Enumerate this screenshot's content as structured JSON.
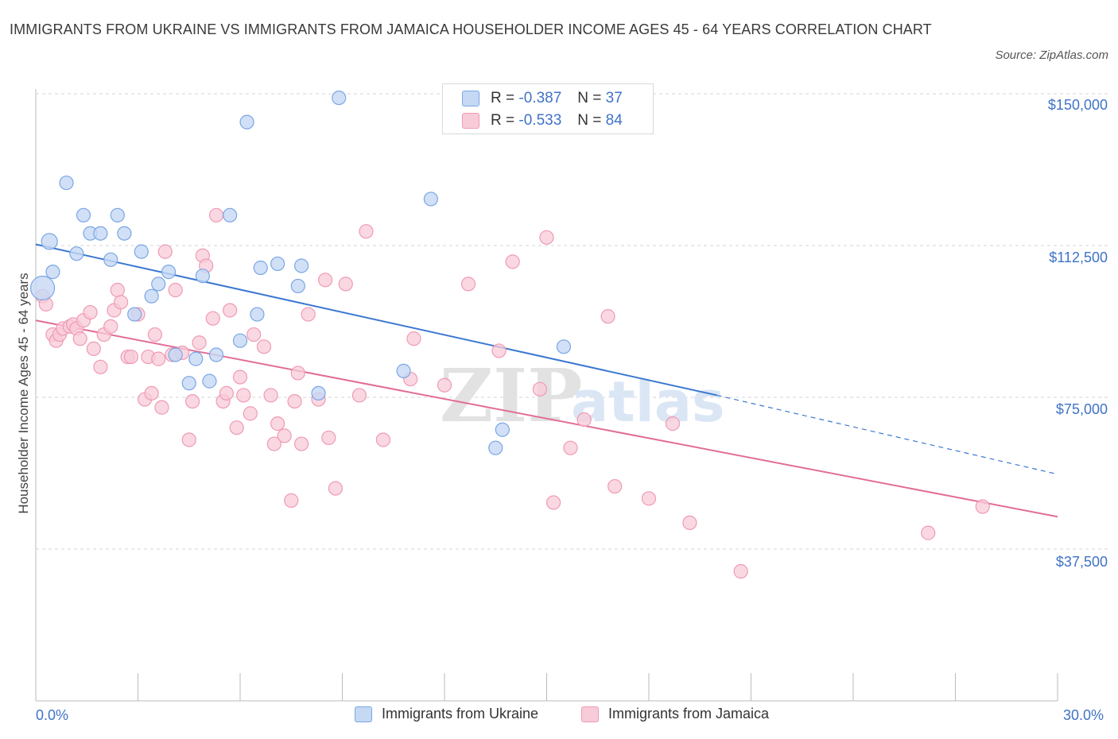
{
  "title": "IMMIGRANTS FROM UKRAINE VS IMMIGRANTS FROM JAMAICA HOUSEHOLDER INCOME AGES 45 - 64 YEARS CORRELATION CHART",
  "source": "Source: ZipAtlas.com",
  "watermark": {
    "zip": "ZIP",
    "atlas": "atlas"
  },
  "colors": {
    "ukraine_fill": "#c5d8f4",
    "ukraine_stroke": "#7aa6e6",
    "ukraine_line": "#3c78d0",
    "jamaica_fill": "#f8cbd8",
    "jamaica_stroke": "#ef9ab4",
    "jamaica_line": "#e26d97",
    "axis_text": "#3f73c6",
    "grid": "#d6d6d6"
  },
  "legend": {
    "r_label": "R =",
    "n_label": "N =",
    "ukraine": {
      "r": "-0.387",
      "n": "37"
    },
    "jamaica": {
      "r": "-0.533",
      "n": "84"
    }
  },
  "chart_data": {
    "type": "scatter",
    "title": "IMMIGRANTS FROM UKRAINE VS IMMIGRANTS FROM JAMAICA HOUSEHOLDER INCOME AGES 45 - 64 YEARS CORRELATION CHART",
    "xlabel": "",
    "ylabel": "Householder Income Ages 45 - 64 years",
    "xlim": [
      0,
      30
    ],
    "ylim": [
      0,
      150000
    ],
    "x_tick_labels": [
      "0.0%",
      "30.0%"
    ],
    "y_ticks": [
      37500,
      75000,
      112500,
      150000
    ],
    "y_tick_labels": [
      "$37,500",
      "$75,000",
      "$112,500",
      "$150,000"
    ],
    "grid": true,
    "series": [
      {
        "name": "Immigrants from Ukraine",
        "points": [
          [
            0.2,
            102000
          ],
          [
            0.4,
            113500
          ],
          [
            0.5,
            106000
          ],
          [
            0.9,
            128000
          ],
          [
            1.2,
            110500
          ],
          [
            1.4,
            120000
          ],
          [
            1.6,
            115500
          ],
          [
            1.9,
            115500
          ],
          [
            2.2,
            109000
          ],
          [
            2.4,
            120000
          ],
          [
            2.6,
            115500
          ],
          [
            2.9,
            95500
          ],
          [
            3.1,
            111000
          ],
          [
            3.4,
            100000
          ],
          [
            3.6,
            103000
          ],
          [
            3.9,
            106000
          ],
          [
            4.1,
            85500
          ],
          [
            4.5,
            78500
          ],
          [
            4.7,
            84500
          ],
          [
            4.9,
            105000
          ],
          [
            5.1,
            79000
          ],
          [
            5.3,
            85500
          ],
          [
            5.7,
            120000
          ],
          [
            6.0,
            89000
          ],
          [
            6.2,
            143000
          ],
          [
            6.5,
            95500
          ],
          [
            6.6,
            107000
          ],
          [
            7.1,
            108000
          ],
          [
            7.7,
            102500
          ],
          [
            7.8,
            107500
          ],
          [
            8.3,
            76000
          ],
          [
            8.9,
            149000
          ],
          [
            10.8,
            81500
          ],
          [
            11.6,
            124000
          ],
          [
            13.5,
            62500
          ],
          [
            13.7,
            67000
          ],
          [
            15.5,
            87500
          ]
        ],
        "trend": {
          "x": [
            0,
            20.0
          ],
          "y": [
            112800,
            75500
          ],
          "dashed_to": [
            30,
            56000
          ]
        }
      },
      {
        "name": "Immigrants from Jamaica",
        "points": [
          [
            0.2,
            100000
          ],
          [
            0.3,
            98000
          ],
          [
            0.5,
            90500
          ],
          [
            0.6,
            89000
          ],
          [
            0.7,
            90500
          ],
          [
            0.8,
            92000
          ],
          [
            1.0,
            92500
          ],
          [
            1.1,
            93000
          ],
          [
            1.2,
            92000
          ],
          [
            1.3,
            89500
          ],
          [
            1.4,
            94000
          ],
          [
            1.6,
            96000
          ],
          [
            1.7,
            87000
          ],
          [
            1.9,
            82500
          ],
          [
            2.0,
            90500
          ],
          [
            2.2,
            92500
          ],
          [
            2.3,
            96500
          ],
          [
            2.4,
            101500
          ],
          [
            2.5,
            98500
          ],
          [
            2.7,
            85000
          ],
          [
            2.8,
            85000
          ],
          [
            3.0,
            95500
          ],
          [
            3.2,
            74500
          ],
          [
            3.3,
            85000
          ],
          [
            3.4,
            76000
          ],
          [
            3.5,
            90500
          ],
          [
            3.6,
            84500
          ],
          [
            3.7,
            72500
          ],
          [
            3.8,
            111000
          ],
          [
            4.0,
            85500
          ],
          [
            4.1,
            101500
          ],
          [
            4.3,
            86000
          ],
          [
            4.5,
            64500
          ],
          [
            4.6,
            74000
          ],
          [
            4.8,
            88500
          ],
          [
            4.9,
            110000
          ],
          [
            5.0,
            107500
          ],
          [
            5.2,
            94500
          ],
          [
            5.3,
            120000
          ],
          [
            5.5,
            74000
          ],
          [
            5.6,
            76000
          ],
          [
            5.7,
            96500
          ],
          [
            5.9,
            67500
          ],
          [
            6.0,
            80000
          ],
          [
            6.1,
            75500
          ],
          [
            6.3,
            71000
          ],
          [
            6.4,
            90500
          ],
          [
            6.7,
            87500
          ],
          [
            6.9,
            75500
          ],
          [
            7.0,
            63500
          ],
          [
            7.1,
            68500
          ],
          [
            7.3,
            65500
          ],
          [
            7.5,
            49500
          ],
          [
            7.6,
            74000
          ],
          [
            7.7,
            81000
          ],
          [
            7.8,
            63500
          ],
          [
            8.0,
            95500
          ],
          [
            8.3,
            74500
          ],
          [
            8.5,
            104000
          ],
          [
            8.6,
            65000
          ],
          [
            8.8,
            52500
          ],
          [
            9.1,
            103000
          ],
          [
            9.5,
            75500
          ],
          [
            9.7,
            116000
          ],
          [
            10.2,
            64500
          ],
          [
            11.0,
            79500
          ],
          [
            11.1,
            89500
          ],
          [
            12.0,
            78000
          ],
          [
            12.7,
            103000
          ],
          [
            13.6,
            86500
          ],
          [
            14.0,
            108500
          ],
          [
            14.8,
            77000
          ],
          [
            15.0,
            114500
          ],
          [
            15.2,
            49000
          ],
          [
            15.7,
            62500
          ],
          [
            16.1,
            69500
          ],
          [
            16.8,
            95000
          ],
          [
            17.0,
            53000
          ],
          [
            18.0,
            50000
          ],
          [
            18.7,
            68500
          ],
          [
            19.2,
            44000
          ],
          [
            20.7,
            32000
          ],
          [
            26.2,
            41500
          ],
          [
            27.8,
            48000
          ]
        ],
        "trend": {
          "x": [
            0,
            30
          ],
          "y": [
            94000,
            45500
          ]
        }
      }
    ]
  },
  "bottom_legend": {
    "ukraine": "Immigrants from Ukraine",
    "jamaica": "Immigrants from Jamaica"
  }
}
